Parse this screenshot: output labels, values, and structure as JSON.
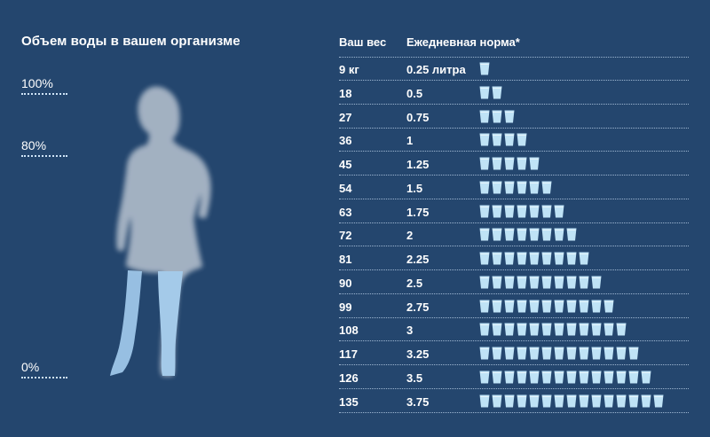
{
  "left_title": "Объем воды в вашем организме",
  "levels": {
    "top": "100%",
    "mid": "80%",
    "bottom": "0%"
  },
  "table": {
    "col_weight": "Ваш вес",
    "col_norm": "Ежедневная норма*",
    "rows": [
      {
        "weight": "9 кг",
        "norm": "0.25 литра",
        "cups": 1
      },
      {
        "weight": "18",
        "norm": "0.5",
        "cups": 2
      },
      {
        "weight": "27",
        "norm": "0.75",
        "cups": 3
      },
      {
        "weight": "36",
        "norm": "1",
        "cups": 4
      },
      {
        "weight": "45",
        "norm": "1.25",
        "cups": 5
      },
      {
        "weight": "54",
        "norm": "1.5",
        "cups": 6
      },
      {
        "weight": "63",
        "norm": "1.75",
        "cups": 7
      },
      {
        "weight": "72",
        "norm": "2",
        "cups": 8
      },
      {
        "weight": "81",
        "norm": "2.25",
        "cups": 9
      },
      {
        "weight": "90",
        "norm": "2.5",
        "cups": 10
      },
      {
        "weight": "99",
        "norm": "2.75",
        "cups": 11
      },
      {
        "weight": "108",
        "norm": "3",
        "cups": 12
      },
      {
        "weight": "117",
        "norm": "3.25",
        "cups": 13
      },
      {
        "weight": "126",
        "norm": "3.5",
        "cups": 14
      },
      {
        "weight": "135",
        "norm": "3.75",
        "cups": 15
      }
    ]
  },
  "colors": {
    "background": "#24466e",
    "cup": "#bfe3f6",
    "figure_light": "#ffffff",
    "figure_water": "#a9cdec"
  },
  "icons": {
    "cup": "water-glass-icon",
    "figure": "woman-silhouette"
  }
}
